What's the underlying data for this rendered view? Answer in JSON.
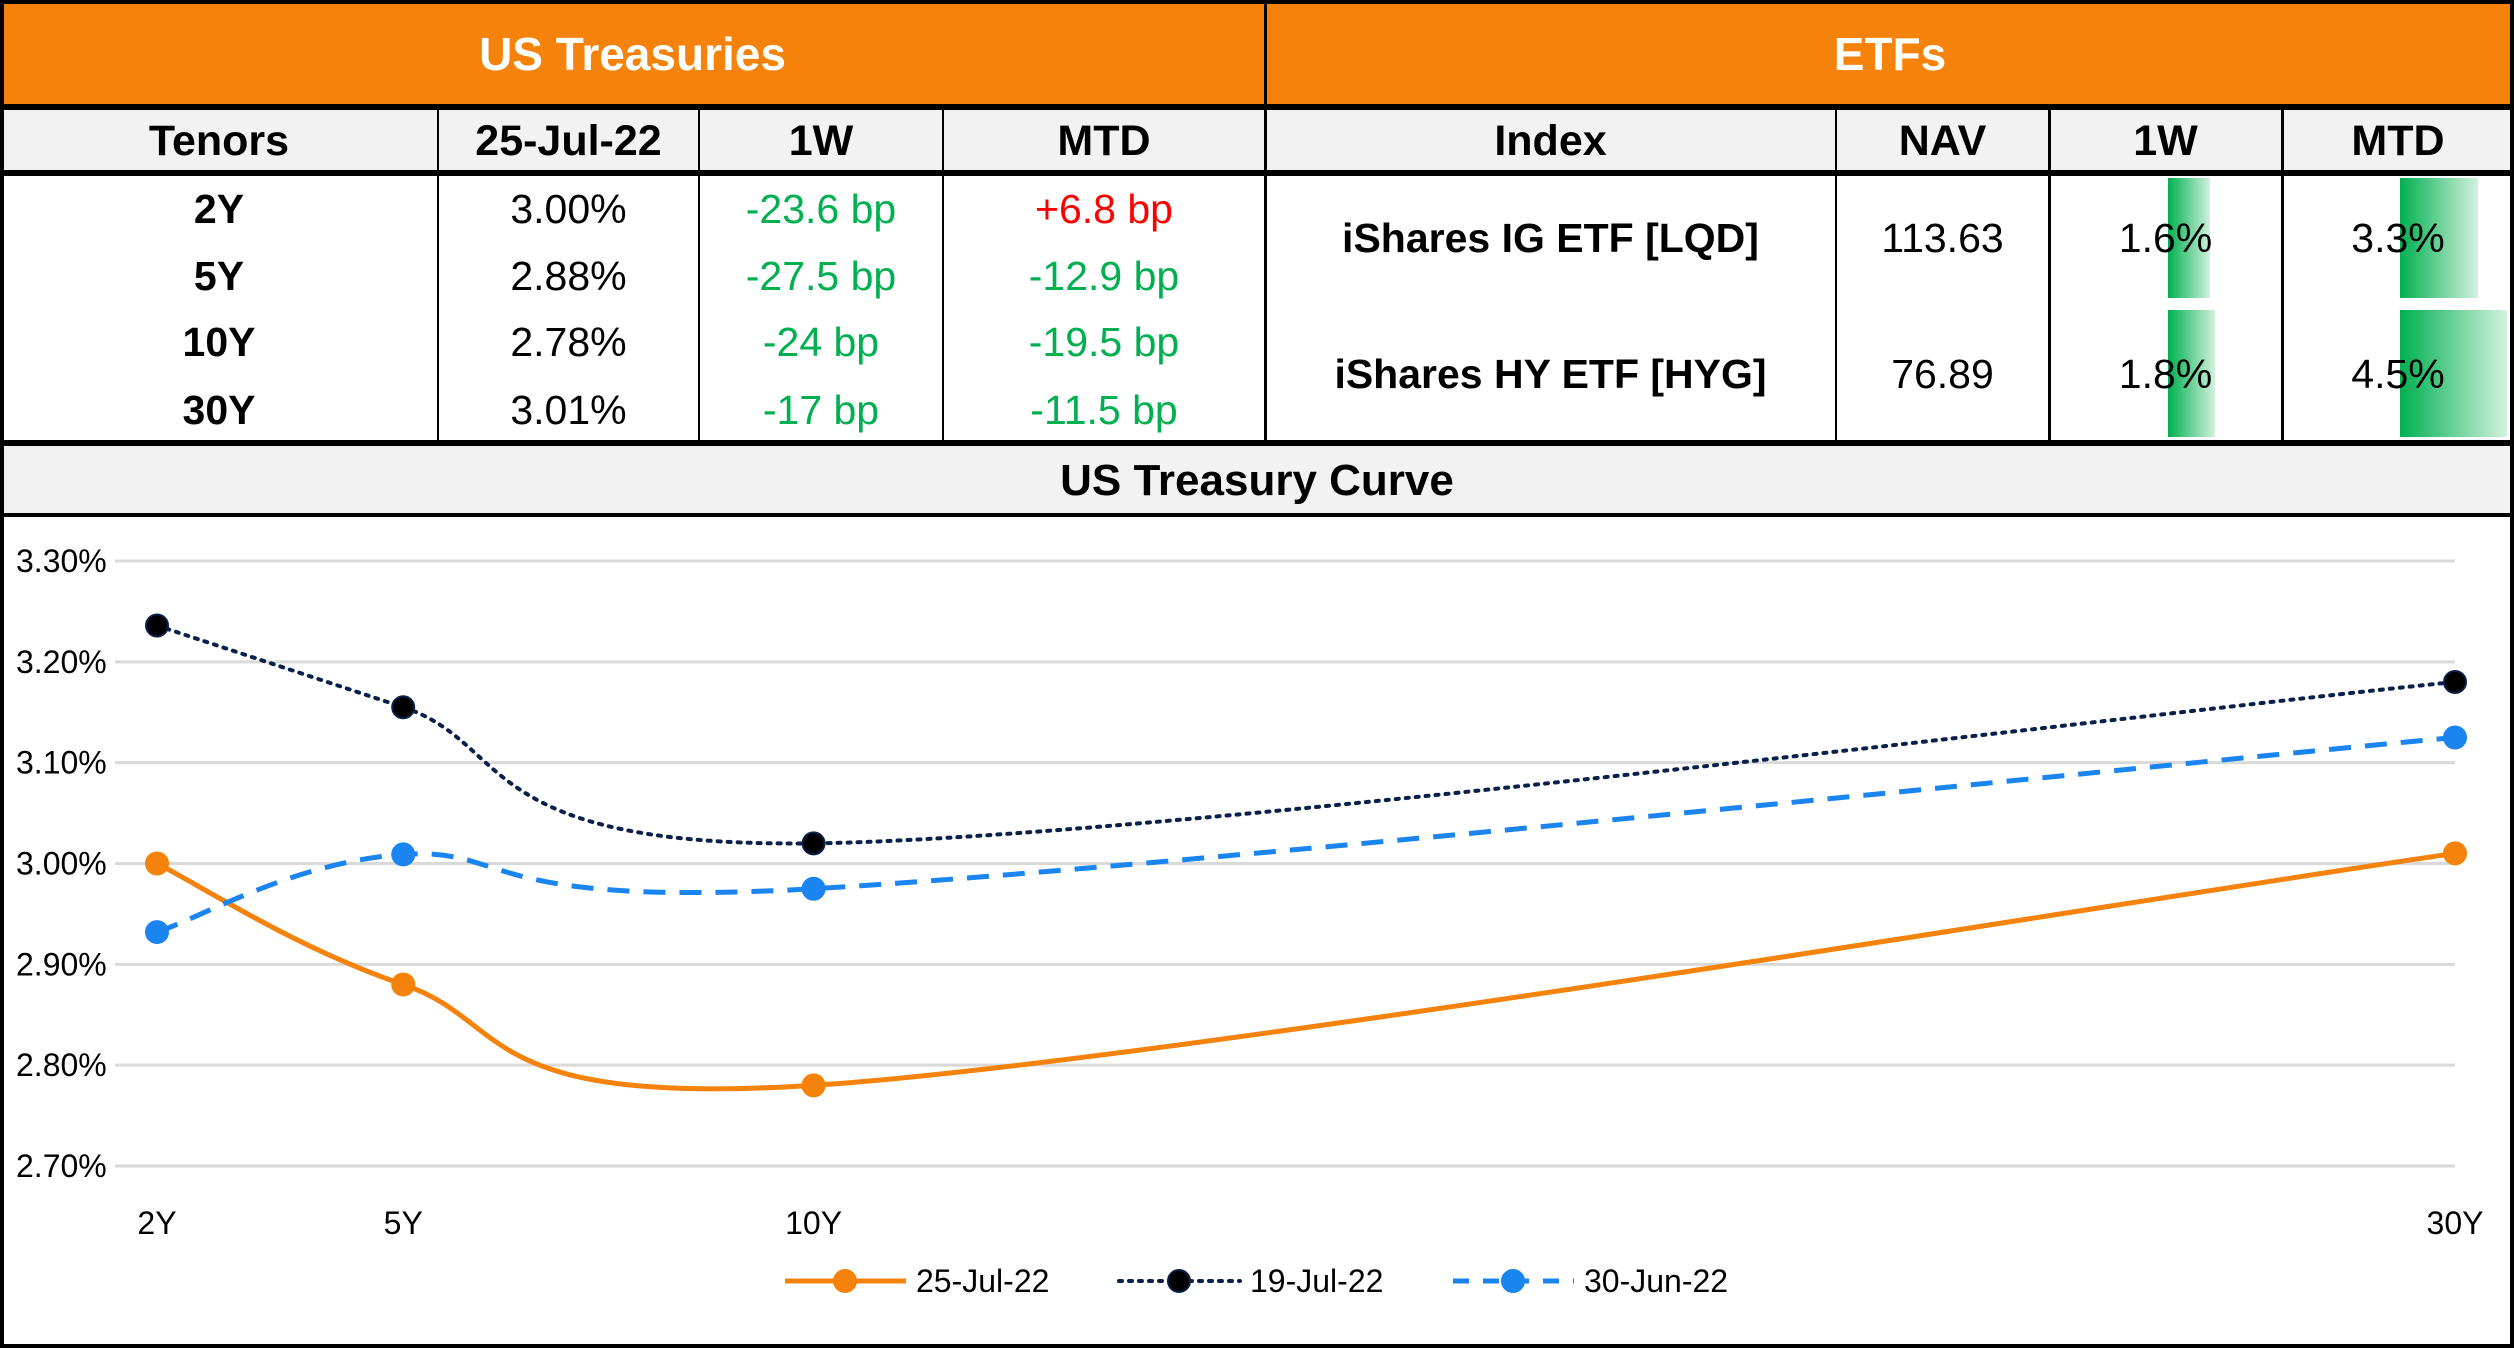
{
  "banners": {
    "treasuries": "US Treasuries",
    "etfs": "ETFs"
  },
  "colors": {
    "header_orange": "#F5820A",
    "header_gray": "#F2F2F2",
    "positive": "#FF0000",
    "negative": "#00B050",
    "bar_green": "#00B050"
  },
  "treasuries": {
    "columns": [
      "Tenors",
      "25-Jul-22",
      "1W",
      "MTD"
    ],
    "rows": [
      {
        "tenor": "2Y",
        "yield": "3.00%",
        "w1": "-23.6 bp",
        "mtd": "+6.8 bp",
        "w1_dir": "down",
        "mtd_dir": "up"
      },
      {
        "tenor": "5Y",
        "yield": "2.88%",
        "w1": "-27.5 bp",
        "mtd": "-12.9 bp",
        "w1_dir": "down",
        "mtd_dir": "down"
      },
      {
        "tenor": "10Y",
        "yield": "2.78%",
        "w1": "-24 bp",
        "mtd": "-19.5 bp",
        "w1_dir": "down",
        "mtd_dir": "down"
      },
      {
        "tenor": "30Y",
        "yield": "3.01%",
        "w1": "-17 bp",
        "mtd": "-11.5 bp",
        "w1_dir": "down",
        "mtd_dir": "down"
      }
    ]
  },
  "etfs": {
    "columns": [
      "Index",
      "NAV",
      "1W",
      "MTD"
    ],
    "bar_max_percent": 4.5,
    "rows": [
      {
        "index": "iShares IG ETF [LQD]",
        "nav": "113.63",
        "w1": "1.6%",
        "mtd": "3.3%",
        "w1_value": 1.6,
        "mtd_value": 3.3
      },
      {
        "index": "iShares HY ETF [HYG]",
        "nav": "76.89",
        "w1": "1.8%",
        "mtd": "4.5%",
        "w1_value": 1.8,
        "mtd_value": 4.5
      }
    ]
  },
  "chart_data": {
    "type": "line",
    "title": "US Treasury Curve",
    "xlabel": "",
    "ylabel": "",
    "x": [
      2,
      5,
      10,
      30
    ],
    "x_tick_labels": [
      "2Y",
      "5Y",
      "10Y",
      "30Y"
    ],
    "xlim": [
      2,
      30
    ],
    "ylim": [
      2.7,
      3.3
    ],
    "y_ticks": [
      3.3,
      3.2,
      3.1,
      3.0,
      2.9,
      2.8,
      2.7
    ],
    "y_tick_labels": [
      "3.30%",
      "3.20%",
      "3.10%",
      "3.00%",
      "2.90%",
      "2.80%",
      "2.70%"
    ],
    "grid": true,
    "smooth": true,
    "legend_position": "bottom",
    "series": [
      {
        "name": "25-Jul-22",
        "values": [
          3.0,
          2.88,
          2.78,
          3.01
        ],
        "color": "#F5820A",
        "style": "solid",
        "marker_color": "#F5820A"
      },
      {
        "name": "19-Jul-22",
        "values": [
          3.236,
          3.155,
          3.02,
          3.18
        ],
        "color": "#0B1F4B",
        "style": "dotted",
        "marker_color": "#000000"
      },
      {
        "name": "30-Jun-22",
        "values": [
          2.932,
          3.009,
          2.975,
          3.125
        ],
        "color": "#1A84F0",
        "style": "dashed",
        "marker_color": "#1A84F0"
      }
    ]
  }
}
